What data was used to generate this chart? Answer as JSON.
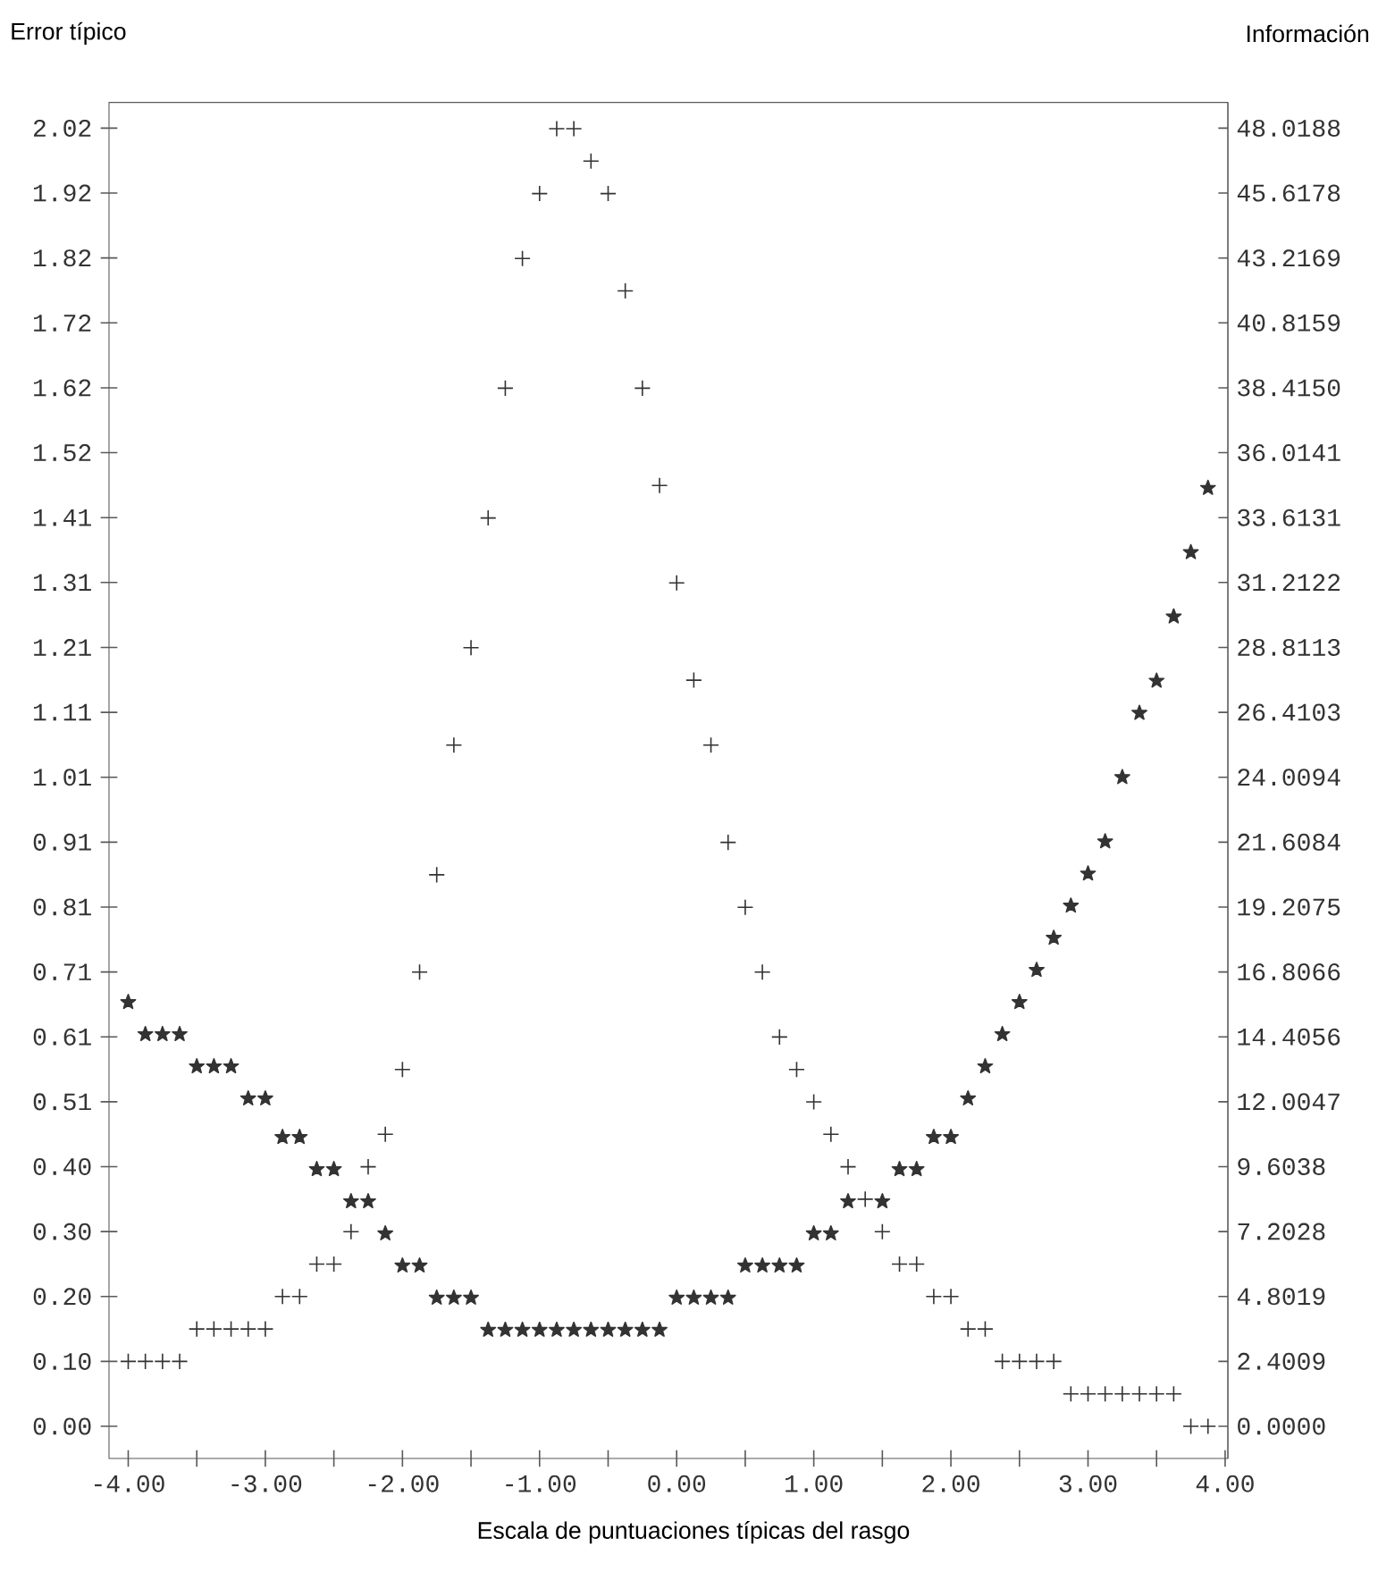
{
  "chart_data": {
    "type": "scatter",
    "xlabel": "Escala de puntuaciones típicas del rasgo",
    "ylabel": "Error típico",
    "y2label": "Información",
    "x": [
      -4,
      -3.875,
      -3.75,
      -3.625,
      -3.5,
      -3.375,
      -3.25,
      -3.125,
      -3,
      -2.875,
      -2.75,
      -2.625,
      -2.5,
      -2.375,
      -2.25,
      -2.125,
      -2,
      -1.875,
      -1.75,
      -1.625,
      -1.5,
      -1.375,
      -1.25,
      -1.125,
      -1,
      -0.875,
      -0.75,
      -0.625,
      -0.5,
      -0.375,
      -0.25,
      -0.125,
      0,
      0.125,
      0.25,
      0.375,
      0.5,
      0.625,
      0.75,
      0.875,
      1,
      1.125,
      1.25,
      1.375,
      1.5,
      1.625,
      1.75,
      1.875,
      2,
      2.125,
      2.25,
      2.375,
      2.5,
      2.625,
      2.75,
      2.875,
      3,
      3.125,
      3.25,
      3.375,
      3.5,
      3.625,
      3.75,
      3.875
    ],
    "series": [
      {
        "color": "#333333",
        "marker": "star",
        "values": [
          0.66,
          0.61,
          0.61,
          0.61,
          0.56,
          0.56,
          0.56,
          0.51,
          0.51,
          0.45,
          0.45,
          0.4,
          0.4,
          0.35,
          0.35,
          0.3,
          0.25,
          0.25,
          0.2,
          0.2,
          0.2,
          0.15,
          0.15,
          0.15,
          0.15,
          0.15,
          0.15,
          0.15,
          0.15,
          0.15,
          0.15,
          0.15,
          0.2,
          0.2,
          0.2,
          0.2,
          0.25,
          0.25,
          0.25,
          0.25,
          0.3,
          0.3,
          0.35,
          null,
          0.35,
          0.4,
          0.4,
          0.45,
          0.45,
          0.51,
          0.56,
          0.61,
          0.66,
          0.71,
          0.76,
          0.81,
          0.86,
          0.91,
          1.01,
          1.11,
          1.16,
          1.26,
          1.36,
          1.46
        ]
      },
      {
        "color": "#333333",
        "marker": "cross",
        "axis": "y2",
        "values": [
          2.4,
          2.4,
          2.4,
          2.4,
          3.6,
          3.6,
          3.6,
          3.6,
          3.6,
          4.8,
          4.8,
          6.0,
          6.0,
          7.2,
          9.6,
          10.8,
          13.2,
          16.8,
          20.4,
          25.2,
          28.8,
          33.6,
          38.4,
          43.2,
          45.6,
          48.0,
          48.0,
          46.8,
          45.6,
          42.0,
          38.4,
          34.8,
          31.2,
          27.6,
          25.2,
          21.6,
          19.2,
          16.8,
          14.4,
          13.2,
          12.0,
          10.8,
          9.6,
          8.4,
          7.2,
          6.0,
          6.0,
          4.8,
          4.8,
          3.6,
          3.6,
          2.4,
          2.4,
          2.4,
          2.4,
          1.2,
          1.2,
          1.2,
          1.2,
          1.2,
          1.2,
          1.2,
          0.0,
          0.0
        ]
      }
    ],
    "xlim": [
      -4.14,
      4.02
    ],
    "ylim": [
      -0.05,
      2.06
    ],
    "y2lim": [
      -1.19,
      48.97
    ],
    "xticks": [
      {
        "value": -4,
        "label": "-4.00"
      },
      {
        "value": -3.5,
        "label": null
      },
      {
        "value": -3,
        "label": "-3.00"
      },
      {
        "value": -2.5,
        "label": null
      },
      {
        "value": -2,
        "label": "-2.00"
      },
      {
        "value": -1.5,
        "label": null
      },
      {
        "value": -1,
        "label": "-1.00"
      },
      {
        "value": -0.5,
        "label": null
      },
      {
        "value": 0,
        "label": "0.00"
      },
      {
        "value": 0.5,
        "label": null
      },
      {
        "value": 1,
        "label": "1.00"
      },
      {
        "value": 1.5,
        "label": null
      },
      {
        "value": 2,
        "label": "2.00"
      },
      {
        "value": 2.5,
        "label": null
      },
      {
        "value": 3,
        "label": "3.00"
      },
      {
        "value": 3.5,
        "label": null
      },
      {
        "value": 4,
        "label": "4.00"
      }
    ],
    "yticks": [
      {
        "value": 0,
        "label": "0.00"
      },
      {
        "value": 0.101,
        "label": "0.10"
      },
      {
        "value": 0.202,
        "label": "0.20"
      },
      {
        "value": 0.303,
        "label": "0.30"
      },
      {
        "value": 0.404,
        "label": "0.40"
      },
      {
        "value": 0.505,
        "label": "0.51"
      },
      {
        "value": 0.606,
        "label": "0.61"
      },
      {
        "value": 0.707,
        "label": "0.71"
      },
      {
        "value": 0.808,
        "label": "0.81"
      },
      {
        "value": 0.909,
        "label": "0.91"
      },
      {
        "value": 1.01,
        "label": "1.01"
      },
      {
        "value": 1.111,
        "label": "1.11"
      },
      {
        "value": 1.212,
        "label": "1.21"
      },
      {
        "value": 1.313,
        "label": "1.31"
      },
      {
        "value": 1.414,
        "label": "1.41"
      },
      {
        "value": 1.515,
        "label": "1.52"
      },
      {
        "value": 1.616,
        "label": "1.62"
      },
      {
        "value": 1.717,
        "label": "1.72"
      },
      {
        "value": 1.818,
        "label": "1.82"
      },
      {
        "value": 1.919,
        "label": "1.92"
      },
      {
        "value": 2.02,
        "label": "2.02"
      }
    ],
    "y2ticks": [
      {
        "value": 0,
        "label": "0.0000"
      },
      {
        "value": 2.4009,
        "label": "2.4009"
      },
      {
        "value": 4.8019,
        "label": "4.8019"
      },
      {
        "value": 7.2028,
        "label": "7.2028"
      },
      {
        "value": 9.6038,
        "label": "9.6038"
      },
      {
        "value": 12.0047,
        "label": "12.0047"
      },
      {
        "value": 14.4056,
        "label": "14.4056"
      },
      {
        "value": 16.8066,
        "label": "16.8066"
      },
      {
        "value": 19.2075,
        "label": "19.2075"
      },
      {
        "value": 21.6084,
        "label": "21.6084"
      },
      {
        "value": 24.0094,
        "label": "24.0094"
      },
      {
        "value": 26.4103,
        "label": "26.4103"
      },
      {
        "value": 28.8113,
        "label": "28.8113"
      },
      {
        "value": 31.2122,
        "label": "31.2122"
      },
      {
        "value": 33.6131,
        "label": "33.6131"
      },
      {
        "value": 36.0141,
        "label": "36.0141"
      },
      {
        "value": 38.415,
        "label": "38.4150"
      },
      {
        "value": 40.8159,
        "label": "40.8159"
      },
      {
        "value": 43.2169,
        "label": "43.2169"
      },
      {
        "value": 45.6178,
        "label": "45.6178"
      },
      {
        "value": 48.0188,
        "label": "48.0188"
      }
    ]
  }
}
